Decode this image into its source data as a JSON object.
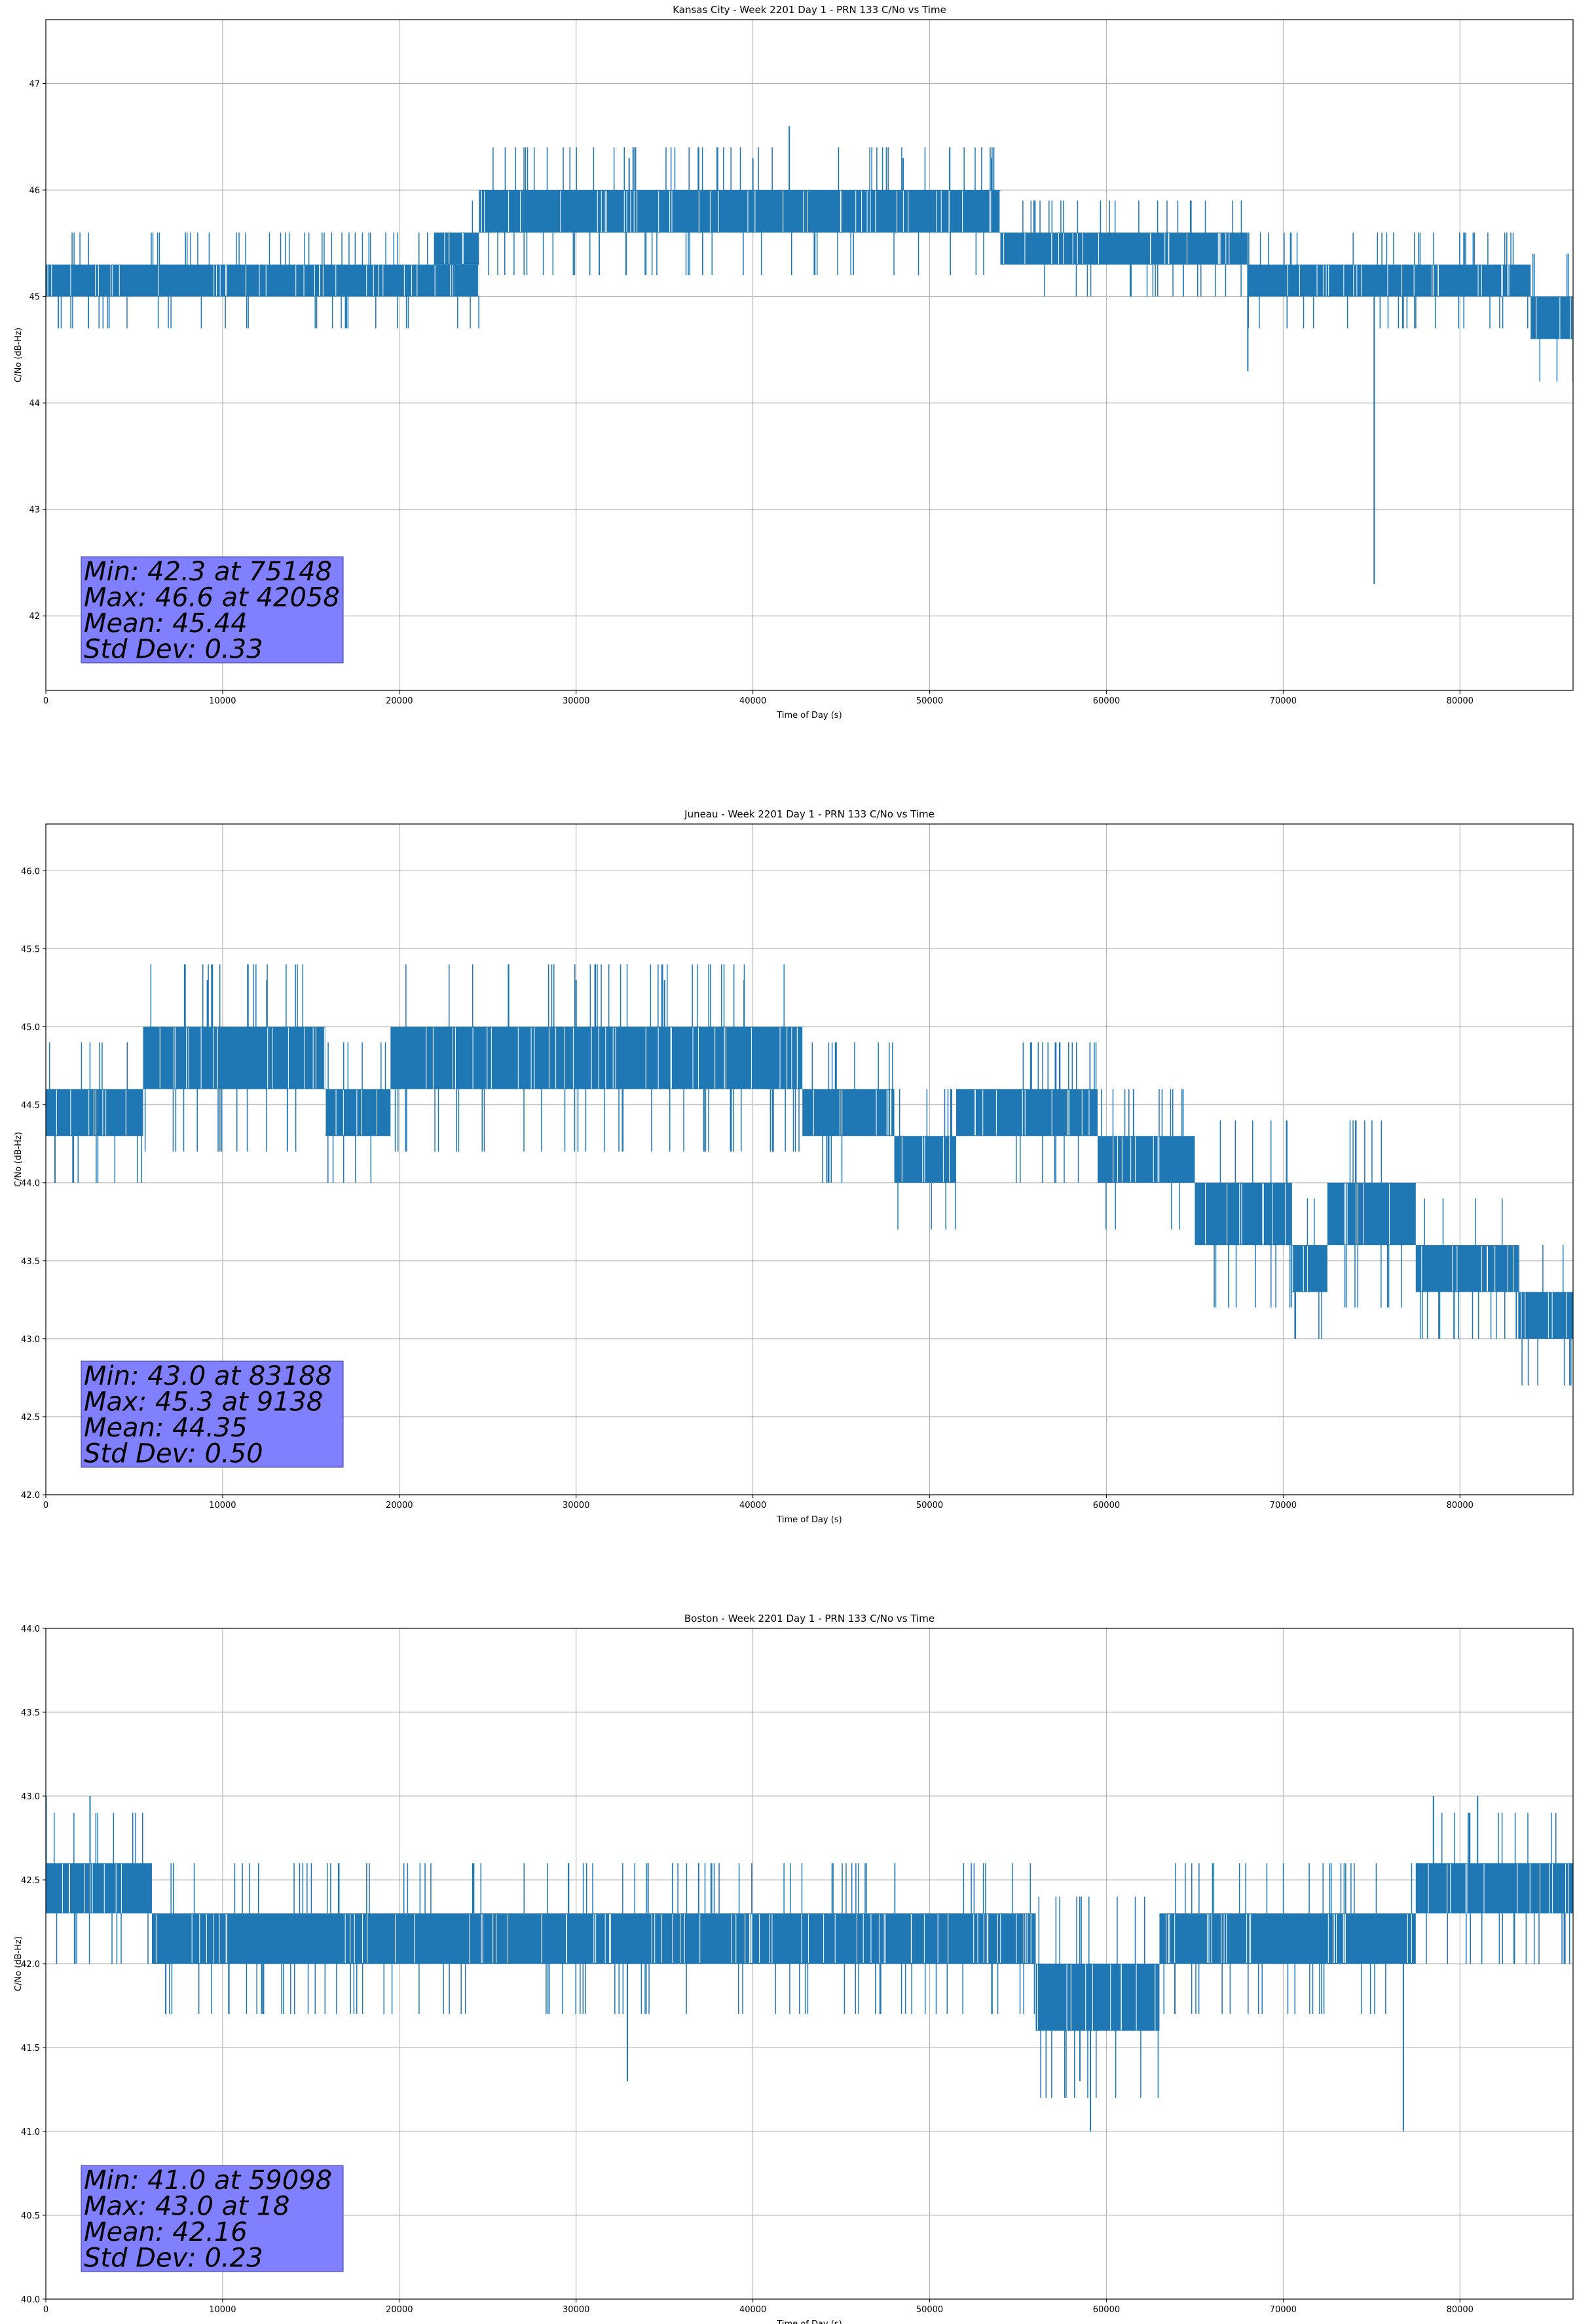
{
  "colors": {
    "series": "#1f77b4",
    "stats_box": "#8080ff",
    "grid": "#b0b0b0"
  },
  "chart_data": [
    {
      "type": "line",
      "title": "Kansas City - Week 2201 Day 1 - PRN 133 C/No vs Time",
      "xlabel": "Time of Day (s)",
      "ylabel": "C/No (dB-Hz)",
      "xlim": [
        0,
        86400
      ],
      "ylim": [
        41.3,
        47.6
      ],
      "xticks": [
        0,
        10000,
        20000,
        30000,
        40000,
        50000,
        60000,
        70000,
        80000
      ],
      "yticks": [
        42,
        43,
        44,
        45,
        46,
        47
      ],
      "ytick_decimals": 0,
      "grid": true,
      "series": [
        {
          "bands": [
            {
              "x": [
                0,
                24500
              ],
              "y": [
                45.0,
                45.3
              ]
            },
            {
              "x": [
                22000,
                24500
              ],
              "y": [
                45.3,
                45.6
              ]
            },
            {
              "x": [
                24500,
                27000
              ],
              "y": [
                45.6,
                46.0
              ]
            },
            {
              "x": [
                27000,
                54000
              ],
              "y": [
                45.6,
                46.0
              ]
            },
            {
              "x": [
                54000,
                66500
              ],
              "y": [
                45.3,
                45.6
              ]
            },
            {
              "x": [
                66500,
                68000
              ],
              "y": [
                45.3,
                45.6
              ]
            },
            {
              "x": [
                68000,
                84000
              ],
              "y": [
                45.0,
                45.3
              ]
            },
            {
              "x": [
                84000,
                86400
              ],
              "y": [
                44.6,
                45.0
              ]
            }
          ],
          "spikes": [
            {
              "x": 42058,
              "y": 46.6
            },
            {
              "x": 75148,
              "y": 42.3
            },
            {
              "x": 68000,
              "y": 44.3
            },
            {
              "x": 40000,
              "y": 46.3
            },
            {
              "x": 48500,
              "y": 46.3
            },
            {
              "x": 33000,
              "y": 46.3
            },
            {
              "x": 53500,
              "y": 46.3
            }
          ]
        }
      ],
      "stats": {
        "min": "Min: 42.3 at 75148",
        "max": "Max: 46.6 at 42058",
        "mean": "Mean: 45.44",
        "std": "Std Dev: 0.33"
      }
    },
    {
      "type": "line",
      "title": "Juneau - Week 2201 Day 1 - PRN 133 C/No vs Time",
      "xlabel": "Time of Day (s)",
      "ylabel": "C/No (dB-Hz)",
      "xlim": [
        0,
        86400
      ],
      "ylim": [
        42.0,
        46.3
      ],
      "xticks": [
        0,
        10000,
        20000,
        30000,
        40000,
        50000,
        60000,
        70000,
        80000
      ],
      "yticks": [
        42.0,
        42.5,
        43.0,
        43.5,
        44.0,
        44.5,
        45.0,
        45.5,
        46.0
      ],
      "ytick_decimals": 1,
      "grid": true,
      "series": [
        {
          "bands": [
            {
              "x": [
                0,
                5500
              ],
              "y": [
                44.3,
                44.6
              ]
            },
            {
              "x": [
                5500,
                15800
              ],
              "y": [
                44.6,
                45.0
              ]
            },
            {
              "x": [
                15800,
                19500
              ],
              "y": [
                44.3,
                44.6
              ]
            },
            {
              "x": [
                19500,
                42800
              ],
              "y": [
                44.6,
                45.0
              ]
            },
            {
              "x": [
                42800,
                48000
              ],
              "y": [
                44.3,
                44.6
              ]
            },
            {
              "x": [
                48000,
                51500
              ],
              "y": [
                44.0,
                44.3
              ]
            },
            {
              "x": [
                51500,
                59500
              ],
              "y": [
                44.3,
                44.6
              ]
            },
            {
              "x": [
                59500,
                65000
              ],
              "y": [
                44.0,
                44.3
              ]
            },
            {
              "x": [
                65000,
                70500
              ],
              "y": [
                43.6,
                44.0
              ]
            },
            {
              "x": [
                70500,
                72500
              ],
              "y": [
                43.3,
                43.6
              ]
            },
            {
              "x": [
                72500,
                77500
              ],
              "y": [
                43.6,
                44.0
              ]
            },
            {
              "x": [
                77500,
                83300
              ],
              "y": [
                43.3,
                43.6
              ]
            },
            {
              "x": [
                83300,
                86400
              ],
              "y": [
                43.0,
                43.3
              ]
            }
          ],
          "spikes": [
            {
              "x": 9138,
              "y": 45.3
            },
            {
              "x": 12500,
              "y": 45.3
            },
            {
              "x": 30000,
              "y": 45.3
            },
            {
              "x": 35000,
              "y": 45.3
            },
            {
              "x": 39500,
              "y": 45.3
            },
            {
              "x": 83188,
              "y": 43.0
            }
          ]
        }
      ],
      "stats": {
        "min": "Min: 43.0 at 83188",
        "max": "Max: 45.3 at 9138",
        "mean": "Mean: 44.35",
        "std": "Std Dev: 0.50"
      }
    },
    {
      "type": "line",
      "title": "Boston - Week 2201 Day 1 - PRN 133 C/No vs Time",
      "xlabel": "Time of Day (s)",
      "ylabel": "C/No (dB-Hz)",
      "xlim": [
        0,
        86400
      ],
      "ylim": [
        40.0,
        44.0
      ],
      "xticks": [
        0,
        10000,
        20000,
        30000,
        40000,
        50000,
        60000,
        70000,
        80000
      ],
      "yticks": [
        40.0,
        40.5,
        41.0,
        41.5,
        42.0,
        42.5,
        43.0,
        43.5,
        44.0
      ],
      "ytick_decimals": 1,
      "grid": true,
      "series": [
        {
          "bands": [
            {
              "x": [
                0,
                6000
              ],
              "y": [
                42.3,
                42.6
              ]
            },
            {
              "x": [
                6000,
                9500
              ],
              "y": [
                42.0,
                42.3
              ]
            },
            {
              "x": [
                9500,
                56000
              ],
              "y": [
                42.0,
                42.3
              ]
            },
            {
              "x": [
                56000,
                63000
              ],
              "y": [
                41.6,
                42.0
              ]
            },
            {
              "x": [
                63000,
                77500
              ],
              "y": [
                42.0,
                42.3
              ]
            },
            {
              "x": [
                77500,
                86400
              ],
              "y": [
                42.3,
                42.6
              ]
            }
          ],
          "spikes": [
            {
              "x": 18,
              "y": 43.0
            },
            {
              "x": 2500,
              "y": 43.0
            },
            {
              "x": 78500,
              "y": 43.0
            },
            {
              "x": 81000,
              "y": 43.0
            },
            {
              "x": 59098,
              "y": 41.0
            },
            {
              "x": 76800,
              "y": 41.0
            },
            {
              "x": 32900,
              "y": 41.3
            },
            {
              "x": 58500,
              "y": 41.3
            }
          ]
        }
      ],
      "stats": {
        "min": "Min: 41.0 at 59098",
        "max": "Max: 43.0 at 18",
        "mean": "Mean: 42.16",
        "std": "Std Dev: 0.23"
      }
    }
  ]
}
